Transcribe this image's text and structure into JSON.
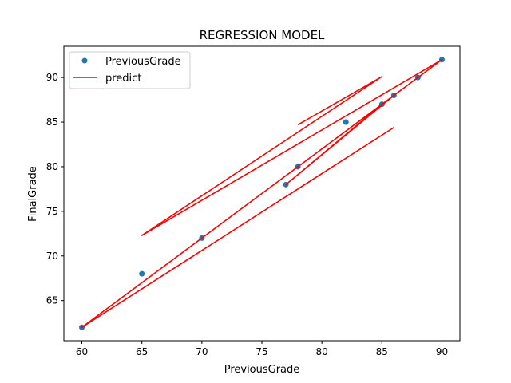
{
  "chart_data": {
    "type": "scatter",
    "title": "REGRESSION MODEL",
    "xlabel": "PreviousGrade",
    "ylabel": "FinalGrade",
    "xlim": [
      58.5,
      91.5
    ],
    "ylim": [
      60.5,
      93.5
    ],
    "xticks": [
      60,
      65,
      70,
      75,
      80,
      85,
      90
    ],
    "yticks": [
      65,
      70,
      75,
      80,
      85,
      90
    ],
    "legend_position": "top-left",
    "grid": false,
    "series": [
      {
        "name": "PreviousGrade",
        "kind": "scatter",
        "color": "#1f77b4",
        "points": [
          {
            "x": 60,
            "y": 62
          },
          {
            "x": 65,
            "y": 68
          },
          {
            "x": 70,
            "y": 72
          },
          {
            "x": 77,
            "y": 78
          },
          {
            "x": 78,
            "y": 80
          },
          {
            "x": 82,
            "y": 85
          },
          {
            "x": 85,
            "y": 87
          },
          {
            "x": 86,
            "y": 88
          },
          {
            "x": 88,
            "y": 90
          },
          {
            "x": 90,
            "y": 92
          }
        ]
      },
      {
        "name": "predict",
        "kind": "line",
        "color": "#ff0000",
        "points": [
          {
            "x": 78,
            "y": 84.7
          },
          {
            "x": 85,
            "y": 90.1
          },
          {
            "x": 65,
            "y": 72.3
          },
          {
            "x": 90,
            "y": 92
          },
          {
            "x": 60,
            "y": 62
          },
          {
            "x": 88,
            "y": 90
          },
          {
            "x": 70,
            "y": 72
          },
          {
            "x": 86,
            "y": 88
          },
          {
            "x": 77,
            "y": 78
          },
          {
            "x": 85,
            "y": 87
          },
          {
            "x": 78,
            "y": 80
          },
          {
            "x": 90,
            "y": 92
          },
          {
            "x": 60,
            "y": 62
          },
          {
            "x": 86,
            "y": 84.4
          }
        ]
      }
    ]
  }
}
